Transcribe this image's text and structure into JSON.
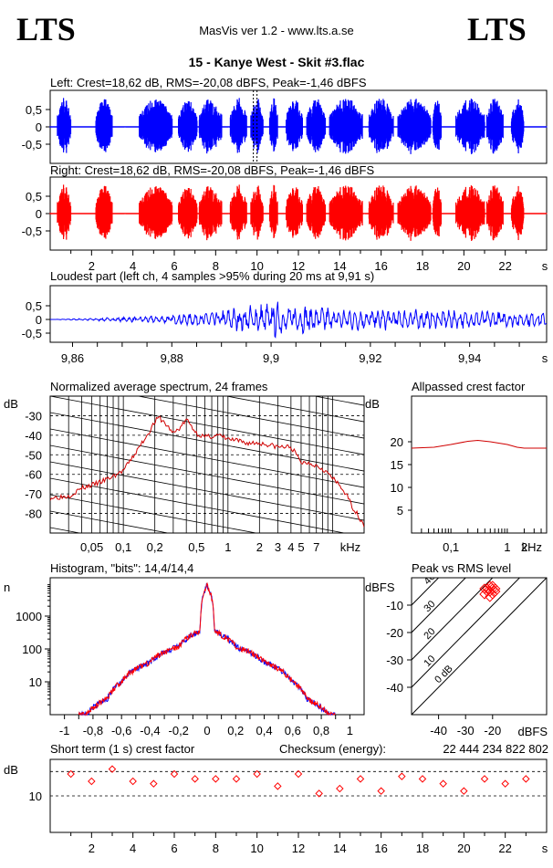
{
  "header": {
    "logo_left": "LTS",
    "logo_right": "LTS",
    "app_title": "MasVis ver 1.2 - www.lts.a.se",
    "file_title": "15 - Kanye West - Skit #3.flac"
  },
  "colors": {
    "left": "#0000ff",
    "right": "#ff0000",
    "spectrum": "#d00000",
    "grid": "#000000"
  },
  "chart_data": [
    {
      "id": "left_waveform",
      "type": "area",
      "title": "Left: Crest=18,62 dB, RMS=-20,08 dBFS, Peak=-1,46 dBFS",
      "xlim": [
        0,
        24
      ],
      "ylim": [
        -1,
        1
      ],
      "yticks": [
        "0,5",
        "0",
        "-0,5"
      ],
      "marker_at_s": 9.91,
      "bursts_s": [
        [
          0.35,
          1.0
        ],
        [
          2.2,
          3.0
        ],
        [
          4.3,
          5.9
        ],
        [
          6.2,
          7.1
        ],
        [
          7.2,
          8.3
        ],
        [
          8.7,
          9.5
        ],
        [
          9.7,
          10.3
        ],
        [
          10.6,
          11.0
        ],
        [
          11.4,
          12.2
        ],
        [
          12.4,
          13.3
        ],
        [
          13.5,
          15.1
        ],
        [
          15.4,
          16.6
        ],
        [
          16.8,
          18.4
        ],
        [
          18.5,
          18.9
        ],
        [
          19.6,
          21.0
        ],
        [
          21.1,
          21.9
        ],
        [
          22.3,
          22.9
        ]
      ],
      "envelope": {
        "silence": 0.02,
        "burst_peak": 0.84
      }
    },
    {
      "id": "right_waveform",
      "type": "area",
      "title": "Right: Crest=18,62 dB, RMS=-20,08 dBFS, Peak=-1,46 dBFS",
      "xlim": [
        0,
        24
      ],
      "ylim": [
        -1,
        1
      ],
      "yticks": [
        "0,5",
        "0",
        "-0,5"
      ],
      "xticks": [
        "2",
        "4",
        "6",
        "8",
        "10",
        "12",
        "14",
        "16",
        "18",
        "20",
        "22"
      ],
      "xunit": "s",
      "bursts_s": [
        [
          0.35,
          1.0
        ],
        [
          2.2,
          3.0
        ],
        [
          4.3,
          5.9
        ],
        [
          6.2,
          7.1
        ],
        [
          7.2,
          8.3
        ],
        [
          8.7,
          9.5
        ],
        [
          9.7,
          10.3
        ],
        [
          10.6,
          11.0
        ],
        [
          11.4,
          12.2
        ],
        [
          12.4,
          13.3
        ],
        [
          13.5,
          15.1
        ],
        [
          15.4,
          16.6
        ],
        [
          16.8,
          18.4
        ],
        [
          18.5,
          18.9
        ],
        [
          19.6,
          21.0
        ],
        [
          21.1,
          21.9
        ],
        [
          22.3,
          22.9
        ]
      ],
      "envelope": {
        "silence": 0.02,
        "burst_peak": 0.84
      }
    },
    {
      "id": "loudest_part",
      "type": "line",
      "title": "Loudest part (left  ch, 4 samples >95% during 20 ms at 9,91 s)",
      "xlim": [
        9.8555,
        9.9555
      ],
      "ylim": [
        -1,
        1
      ],
      "yticks": [
        "0,5",
        "0",
        "-0,5"
      ],
      "xticks": [
        "9,86",
        "9,88",
        "9,9",
        "9,92",
        "9,94"
      ],
      "xunit": "s",
      "amplitude_profile": [
        [
          9.856,
          0.0
        ],
        [
          9.862,
          0.04
        ],
        [
          9.872,
          0.1
        ],
        [
          9.88,
          0.18
        ],
        [
          9.885,
          0.25
        ],
        [
          9.89,
          0.4
        ],
        [
          9.896,
          0.55
        ],
        [
          9.9,
          0.72
        ],
        [
          9.905,
          0.6
        ],
        [
          9.915,
          0.45
        ],
        [
          9.93,
          0.38
        ],
        [
          9.945,
          0.32
        ],
        [
          9.955,
          0.28
        ]
      ]
    },
    {
      "id": "spectrum",
      "type": "line",
      "title": "Normalized average spectrum, 24 frames",
      "ylabel": "dB",
      "xunit": "kHz",
      "xlim_khz": [
        0.02,
        20
      ],
      "ylim_db": [
        -90,
        -20
      ],
      "yticks": [
        "-30",
        "-40",
        "-50",
        "-60",
        "-70",
        "-80"
      ],
      "xticks": [
        "0,05",
        "0,1",
        "0,2",
        "0,5",
        "1",
        "2",
        "3",
        "4",
        "5",
        "7"
      ],
      "points": [
        [
          0.02,
          -72
        ],
        [
          0.03,
          -71
        ],
        [
          0.04,
          -67
        ],
        [
          0.06,
          -64
        ],
        [
          0.08,
          -61
        ],
        [
          0.1,
          -58
        ],
        [
          0.12,
          -52
        ],
        [
          0.15,
          -44
        ],
        [
          0.2,
          -33
        ],
        [
          0.22,
          -31
        ],
        [
          0.26,
          -35
        ],
        [
          0.3,
          -39
        ],
        [
          0.35,
          -36
        ],
        [
          0.4,
          -32
        ],
        [
          0.5,
          -39
        ],
        [
          0.6,
          -41
        ],
        [
          0.8,
          -40
        ],
        [
          1,
          -42
        ],
        [
          1.5,
          -44
        ],
        [
          2,
          -44
        ],
        [
          3,
          -46
        ],
        [
          4,
          -46
        ],
        [
          5,
          -54
        ],
        [
          6,
          -54
        ],
        [
          8,
          -57
        ],
        [
          10,
          -62
        ],
        [
          13,
          -69
        ],
        [
          16,
          -78
        ],
        [
          20,
          -86
        ]
      ]
    },
    {
      "id": "allpassed_crest",
      "type": "line",
      "title": "Allpassed crest factor",
      "ylabel": "dB",
      "xunit": "kHz",
      "xlim_khz": [
        0.02,
        5
      ],
      "ylim_db": [
        0,
        30
      ],
      "yticks": [
        "20",
        "15",
        "10",
        "5"
      ],
      "xticks": [
        "0,1",
        "1",
        "2"
      ],
      "points": [
        [
          0.02,
          18.6
        ],
        [
          0.05,
          18.8
        ],
        [
          0.1,
          19.4
        ],
        [
          0.2,
          20.1
        ],
        [
          0.3,
          20.3
        ],
        [
          0.5,
          20.0
        ],
        [
          1,
          19.4
        ],
        [
          1.5,
          18.8
        ],
        [
          2,
          18.6
        ],
        [
          5,
          18.6
        ]
      ]
    },
    {
      "id": "histogram",
      "type": "line",
      "title": "Histogram, \"bits\": 14,4/14,4",
      "ylabel": "n",
      "xlim": [
        -1.1,
        1.1
      ],
      "ylog_range": [
        1,
        10000
      ],
      "yticks": [
        "1000",
        "100",
        "10"
      ],
      "xticks": [
        "-1",
        "-0,8",
        "-0,6",
        "-0,4",
        "-0,2",
        "0",
        "0,2",
        "0,4",
        "0,6",
        "0,8",
        "1"
      ],
      "profile": [
        [
          -0.85,
          1
        ],
        [
          -0.7,
          3
        ],
        [
          -0.6,
          10
        ],
        [
          -0.4,
          40
        ],
        [
          -0.2,
          120
        ],
        [
          -0.05,
          350
        ],
        [
          0,
          9000
        ],
        [
          0.05,
          350
        ],
        [
          0.2,
          120
        ],
        [
          0.4,
          40
        ],
        [
          0.6,
          10
        ],
        [
          0.7,
          3
        ],
        [
          0.85,
          1
        ]
      ]
    },
    {
      "id": "peak_vs_rms",
      "type": "scatter",
      "title": "Peak vs RMS level",
      "ylabel": "dBFS",
      "xlabel": "dBFS",
      "xlim": [
        -50,
        0
      ],
      "ylim": [
        -50,
        0
      ],
      "yticks": [
        "-10",
        "-20",
        "-30",
        "-40"
      ],
      "xticks": [
        "-40",
        "-30",
        "-20"
      ],
      "diagonals": [
        "40",
        "30",
        "20",
        "10",
        "0 dB"
      ],
      "points": [
        [
          -23,
          -6
        ],
        [
          -22,
          -4
        ],
        [
          -21,
          -5
        ],
        [
          -20,
          -3
        ],
        [
          -19,
          -4
        ],
        [
          -21,
          -7
        ],
        [
          -22,
          -5
        ],
        [
          -20,
          -6
        ],
        [
          -19,
          -5
        ],
        [
          -23,
          -4
        ],
        [
          -20,
          -4
        ],
        [
          -21,
          -3
        ]
      ]
    },
    {
      "id": "short_term_crest",
      "type": "scatter",
      "title": "Short term (1 s) crest factor",
      "checksum_label": "Checksum (energy):",
      "checksum_value": "22 444 234 822 802",
      "ylabel": "dB",
      "xunit": "s",
      "xlim": [
        0,
        24
      ],
      "ytick_label": "10",
      "dashed_at_db": [
        10,
        20
      ],
      "xticks": [
        "2",
        "4",
        "6",
        "8",
        "10",
        "12",
        "14",
        "16",
        "18",
        "20",
        "22"
      ],
      "points": [
        [
          1,
          19
        ],
        [
          2,
          16
        ],
        [
          3,
          21
        ],
        [
          4,
          16
        ],
        [
          5,
          15
        ],
        [
          6,
          19
        ],
        [
          7,
          17
        ],
        [
          8,
          17
        ],
        [
          9,
          17
        ],
        [
          10,
          19
        ],
        [
          11,
          14
        ],
        [
          12,
          19
        ],
        [
          13,
          11
        ],
        [
          14,
          13
        ],
        [
          15,
          17
        ],
        [
          16,
          12
        ],
        [
          17,
          18
        ],
        [
          18,
          17
        ],
        [
          19,
          15
        ],
        [
          20,
          12
        ],
        [
          21,
          17
        ],
        [
          22,
          15
        ],
        [
          23,
          17
        ]
      ]
    }
  ]
}
